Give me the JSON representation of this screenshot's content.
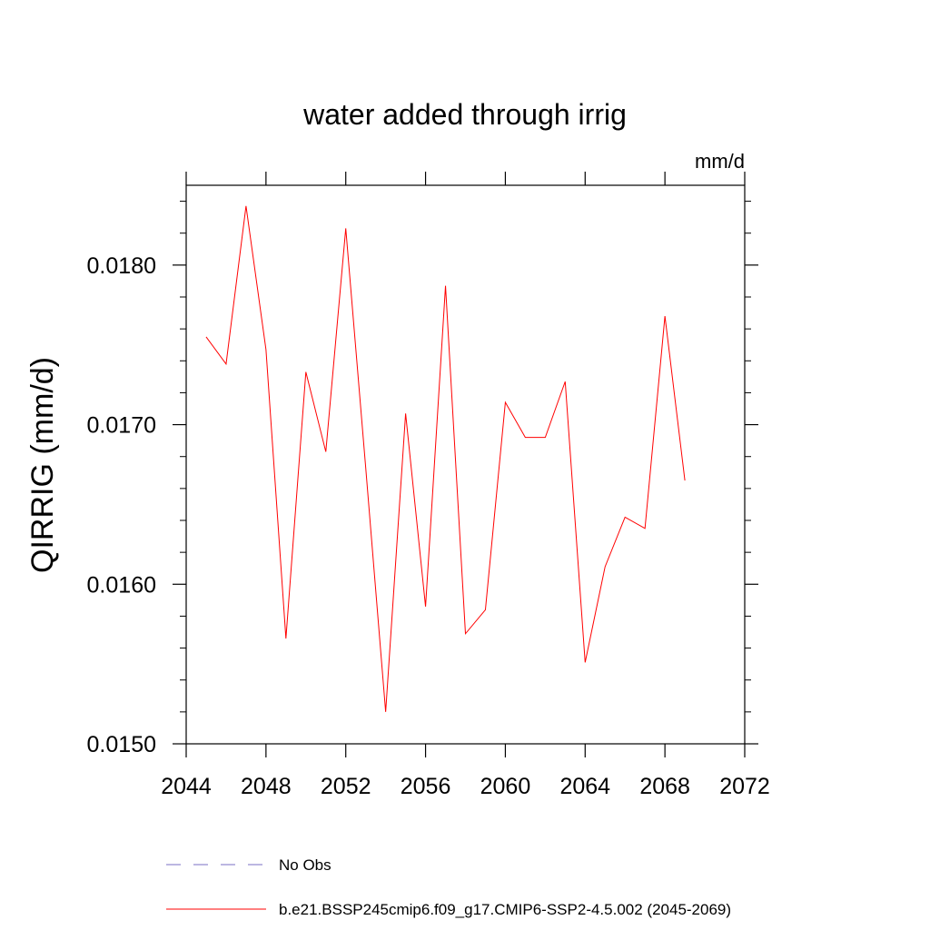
{
  "chart_data": {
    "type": "line",
    "title": "water added through irrig",
    "units_label": "mm/d",
    "ylabel": "QIRRIG  (mm/d)",
    "xlabel": "",
    "xlim": [
      2044,
      2072
    ],
    "ylim": [
      0.015,
      0.0185
    ],
    "x_ticks": [
      2044,
      2048,
      2052,
      2056,
      2060,
      2064,
      2068,
      2072
    ],
    "x_tick_labels": [
      "2044",
      "2048",
      "2052",
      "2056",
      "2060",
      "2064",
      "2068",
      "2072"
    ],
    "y_ticks": [
      0.015,
      0.016,
      0.017,
      0.018
    ],
    "y_tick_labels": [
      "0.0150",
      "0.0160",
      "0.0170",
      "0.0180"
    ],
    "grid": false,
    "legend_position": "bottom",
    "series": [
      {
        "name": "b.e21.BSSP245cmip6.f09_g17.CMIP6-SSP2-4.5.002 (2045-2069)",
        "color": "#ff0000",
        "style": "solid",
        "x": [
          2045,
          2046,
          2047,
          2048,
          2049,
          2050,
          2051,
          2052,
          2053,
          2054,
          2055,
          2056,
          2057,
          2058,
          2059,
          2060,
          2061,
          2062,
          2063,
          2064,
          2065,
          2066,
          2067,
          2068,
          2069
        ],
        "y": [
          0.01755,
          0.01738,
          0.01837,
          0.01747,
          0.01566,
          0.01733,
          0.01683,
          0.01823,
          0.01673,
          0.0152,
          0.01707,
          0.01586,
          0.01787,
          0.01569,
          0.01584,
          0.01714,
          0.01692,
          0.01692,
          0.01727,
          0.01551,
          0.01611,
          0.01642,
          0.01635,
          0.01768,
          0.01665
        ]
      }
    ],
    "legend": [
      {
        "label": "No Obs",
        "color": "#7a6fc4",
        "style": "dashed"
      },
      {
        "label": "b.e21.BSSP245cmip6.f09_g17.CMIP6-SSP2-4.5.002 (2045-2069)",
        "color": "#ff0000",
        "style": "solid"
      }
    ]
  }
}
